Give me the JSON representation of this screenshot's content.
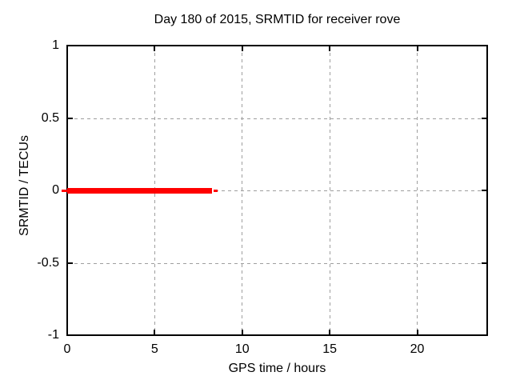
{
  "chart_data": {
    "type": "line",
    "title": "Day 180 of 2015, SRMTID for receiver rove",
    "xlabel": "GPS time / hours",
    "ylabel": "SRMTID / TECUs",
    "xlim": [
      0,
      24
    ],
    "ylim": [
      -1,
      1
    ],
    "xticks": [
      0,
      5,
      10,
      15,
      20
    ],
    "xtick_labels": [
      "0",
      "5",
      "10",
      "15",
      "20"
    ],
    "yticks": [
      1,
      0.5,
      0,
      -0.5,
      -1
    ],
    "ytick_labels": [
      "1",
      "0.5",
      "0",
      "-0.5",
      "-1"
    ],
    "grid": true,
    "legend": "none",
    "background": "#ffffff",
    "colors": {
      "series": "#ff0000",
      "grid": "#9e9e9e",
      "axis": "#000000",
      "text": "#000000"
    },
    "series": [
      {
        "name": "SRMTID",
        "color": "#ff0000",
        "y_value": 0,
        "x_start": 0,
        "x_end": 8.27
      }
    ]
  }
}
